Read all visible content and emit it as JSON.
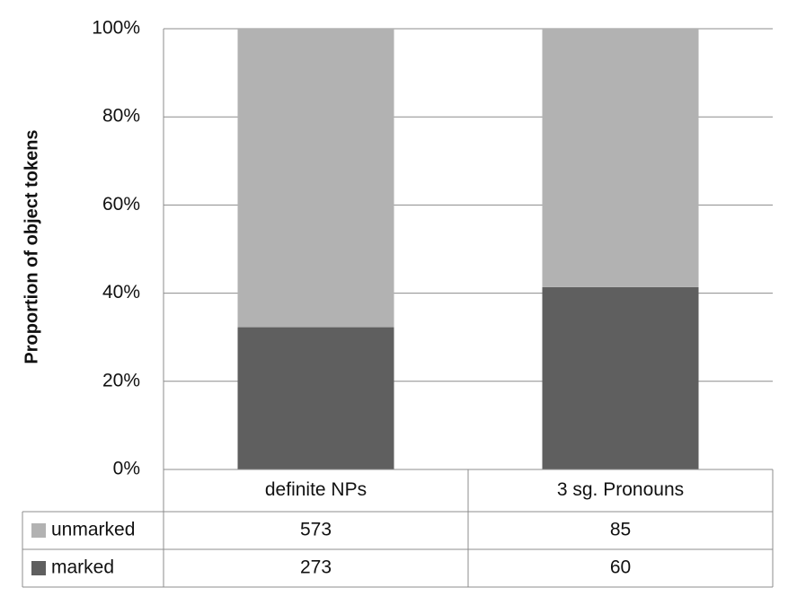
{
  "chart_data": {
    "type": "bar",
    "stacking": "percent",
    "y_label": "Proportion of object tokens",
    "categories": [
      "definite NPs",
      "3 sg. Pronouns"
    ],
    "series": [
      {
        "name": "unmarked",
        "color": "#b2b2b2",
        "values": [
          573,
          85
        ]
      },
      {
        "name": "marked",
        "color": "#5f5f5f",
        "values": [
          273,
          60
        ]
      }
    ],
    "ylim": [
      0,
      100
    ],
    "yticks": [
      {
        "value": 0,
        "label": "0%"
      },
      {
        "value": 20,
        "label": "20%"
      },
      {
        "value": 40,
        "label": "40%"
      },
      {
        "value": 60,
        "label": "60%"
      },
      {
        "value": 80,
        "label": "80%"
      },
      {
        "value": 100,
        "label": "100%"
      }
    ],
    "grid": true,
    "data_table": true
  }
}
